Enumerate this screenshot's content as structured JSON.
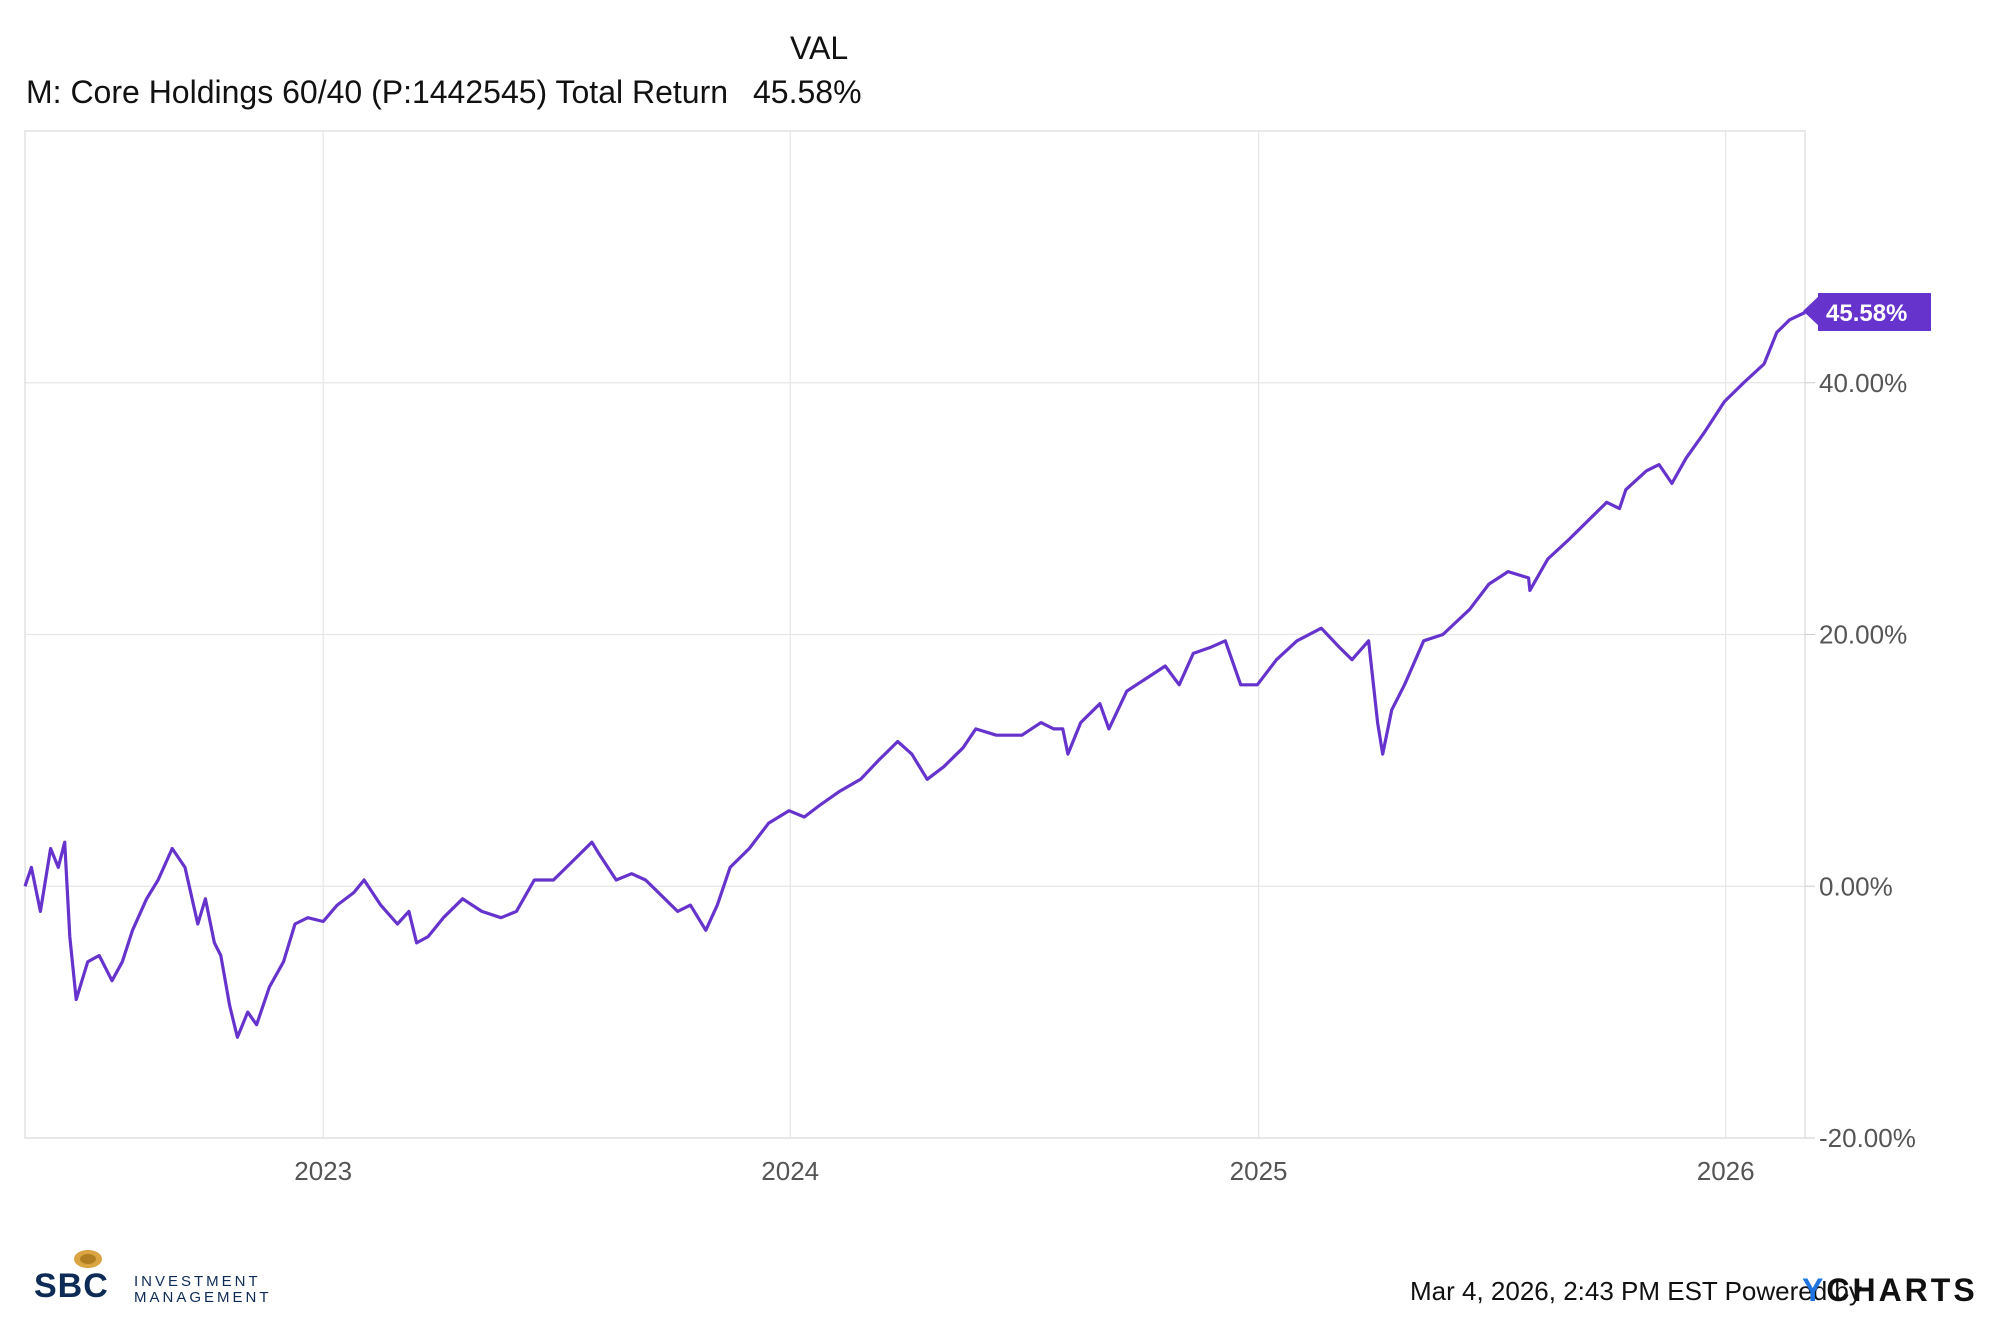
{
  "header": {
    "val_label": "VAL"
  },
  "legend": [
    {
      "name": "M: Core Holdings 60/40 (P:1442545) Total Return",
      "value": "45.58%",
      "color": "#6633cc"
    }
  ],
  "end_label": "45.58%",
  "footer": {
    "timestamp": "Mar 4, 2026, 2:43 PM EST",
    "powered_by": "Powered by",
    "brand_y": "Y",
    "brand_rest": "CHARTS"
  },
  "logo": {
    "brand": "SBC",
    "line1": "INVESTMENT",
    "line2": "MANAGEMENT"
  },
  "chart_data": {
    "type": "line",
    "title": "",
    "xlabel": "",
    "ylabel": "",
    "x_tick_labels": [
      "2023",
      "2024",
      "2025",
      "2026"
    ],
    "y_tick_labels": [
      "-20.00%",
      "0.00%",
      "20.00%",
      "40.00%"
    ],
    "y_ticks": [
      -20,
      0,
      20,
      40
    ],
    "xlim": [
      "2022-05-13",
      "2026-03-04"
    ],
    "ylim": [
      -20,
      60
    ],
    "grid": true,
    "legend_position": "top-left",
    "series": [
      {
        "name": "M: Core Holdings 60/40 (P:1442545) Total Return",
        "color": "#6633cc",
        "points": [
          [
            "2022-05-13",
            0.0
          ],
          [
            "2022-05-18",
            1.5
          ],
          [
            "2022-05-25",
            -2.0
          ],
          [
            "2022-06-02",
            3.0
          ],
          [
            "2022-06-08",
            1.5
          ],
          [
            "2022-06-13",
            3.5
          ],
          [
            "2022-06-17",
            -4.0
          ],
          [
            "2022-06-22",
            -9.0
          ],
          [
            "2022-07-01",
            -6.0
          ],
          [
            "2022-07-10",
            -5.5
          ],
          [
            "2022-07-20",
            -7.5
          ],
          [
            "2022-07-28",
            -6.0
          ],
          [
            "2022-08-05",
            -3.5
          ],
          [
            "2022-08-16",
            -1.0
          ],
          [
            "2022-08-25",
            0.5
          ],
          [
            "2022-09-05",
            3.0
          ],
          [
            "2022-09-15",
            1.5
          ],
          [
            "2022-09-25",
            -3.0
          ],
          [
            "2022-10-01",
            -1.0
          ],
          [
            "2022-10-08",
            -4.5
          ],
          [
            "2022-10-13",
            -5.5
          ],
          [
            "2022-10-20",
            -9.5
          ],
          [
            "2022-10-26",
            -12.0
          ],
          [
            "2022-11-03",
            -10.0
          ],
          [
            "2022-11-10",
            -11.0
          ],
          [
            "2022-11-20",
            -8.0
          ],
          [
            "2022-12-01",
            -6.0
          ],
          [
            "2022-12-10",
            -3.0
          ],
          [
            "2022-12-20",
            -2.5
          ],
          [
            "2023-01-01",
            -2.8
          ],
          [
            "2023-01-12",
            -1.5
          ],
          [
            "2023-01-25",
            -0.5
          ],
          [
            "2023-02-02",
            0.5
          ],
          [
            "2023-02-15",
            -1.5
          ],
          [
            "2023-02-28",
            -3.0
          ],
          [
            "2023-03-09",
            -2.0
          ],
          [
            "2023-03-15",
            -4.5
          ],
          [
            "2023-03-24",
            -4.0
          ],
          [
            "2023-04-05",
            -2.5
          ],
          [
            "2023-04-20",
            -1.0
          ],
          [
            "2023-05-05",
            -2.0
          ],
          [
            "2023-05-20",
            -2.5
          ],
          [
            "2023-06-01",
            -2.0
          ],
          [
            "2023-06-15",
            0.5
          ],
          [
            "2023-06-30",
            0.5
          ],
          [
            "2023-07-15",
            2.0
          ],
          [
            "2023-07-30",
            3.5
          ],
          [
            "2023-08-05",
            2.5
          ],
          [
            "2023-08-18",
            0.5
          ],
          [
            "2023-08-30",
            1.0
          ],
          [
            "2023-09-10",
            0.5
          ],
          [
            "2023-09-25",
            -1.0
          ],
          [
            "2023-10-05",
            -2.0
          ],
          [
            "2023-10-15",
            -1.5
          ],
          [
            "2023-10-27",
            -3.5
          ],
          [
            "2023-11-05",
            -1.5
          ],
          [
            "2023-11-15",
            1.5
          ],
          [
            "2023-11-30",
            3.0
          ],
          [
            "2023-12-15",
            5.0
          ],
          [
            "2023-12-31",
            6.0
          ],
          [
            "2024-01-12",
            5.5
          ],
          [
            "2024-01-25",
            6.5
          ],
          [
            "2024-02-08",
            7.5
          ],
          [
            "2024-02-25",
            8.5
          ],
          [
            "2024-03-10",
            10.0
          ],
          [
            "2024-03-25",
            11.5
          ],
          [
            "2024-04-05",
            10.5
          ],
          [
            "2024-04-17",
            8.5
          ],
          [
            "2024-04-30",
            9.5
          ],
          [
            "2024-05-15",
            11.0
          ],
          [
            "2024-05-25",
            12.5
          ],
          [
            "2024-06-10",
            12.0
          ],
          [
            "2024-06-30",
            12.0
          ],
          [
            "2024-07-15",
            13.0
          ],
          [
            "2024-07-25",
            12.5
          ],
          [
            "2024-08-01",
            12.5
          ],
          [
            "2024-08-05",
            10.5
          ],
          [
            "2024-08-15",
            13.0
          ],
          [
            "2024-08-30",
            14.5
          ],
          [
            "2024-09-06",
            12.5
          ],
          [
            "2024-09-20",
            15.5
          ],
          [
            "2024-10-05",
            16.5
          ],
          [
            "2024-10-20",
            17.5
          ],
          [
            "2024-10-31",
            16.0
          ],
          [
            "2024-11-11",
            18.5
          ],
          [
            "2024-11-25",
            19.0
          ],
          [
            "2024-12-06",
            19.5
          ],
          [
            "2024-12-18",
            16.0
          ],
          [
            "2024-12-31",
            16.0
          ],
          [
            "2025-01-15",
            18.0
          ],
          [
            "2025-01-31",
            19.5
          ],
          [
            "2025-02-19",
            20.5
          ],
          [
            "2025-03-05",
            19.0
          ],
          [
            "2025-03-15",
            18.0
          ],
          [
            "2025-03-28",
            19.5
          ],
          [
            "2025-04-04",
            13.0
          ],
          [
            "2025-04-08",
            10.5
          ],
          [
            "2025-04-15",
            14.0
          ],
          [
            "2025-04-25",
            16.0
          ],
          [
            "2025-05-10",
            19.5
          ],
          [
            "2025-05-25",
            20.0
          ],
          [
            "2025-06-15",
            22.0
          ],
          [
            "2025-06-30",
            24.0
          ],
          [
            "2025-07-15",
            25.0
          ],
          [
            "2025-07-31",
            24.5
          ],
          [
            "2025-08-01",
            23.5
          ],
          [
            "2025-08-15",
            26.0
          ],
          [
            "2025-08-31",
            27.5
          ],
          [
            "2025-09-15",
            29.0
          ],
          [
            "2025-09-30",
            30.5
          ],
          [
            "2025-10-10",
            30.0
          ],
          [
            "2025-10-15",
            31.5
          ],
          [
            "2025-10-31",
            33.0
          ],
          [
            "2025-11-10",
            33.5
          ],
          [
            "2025-11-20",
            32.0
          ],
          [
            "2025-12-01",
            34.0
          ],
          [
            "2025-12-15",
            36.0
          ],
          [
            "2025-12-31",
            38.5
          ],
          [
            "2026-01-15",
            40.0
          ],
          [
            "2026-01-31",
            41.5
          ],
          [
            "2026-02-10",
            44.0
          ],
          [
            "2026-02-20",
            45.0
          ],
          [
            "2026-03-04",
            45.58
          ]
        ]
      }
    ]
  }
}
